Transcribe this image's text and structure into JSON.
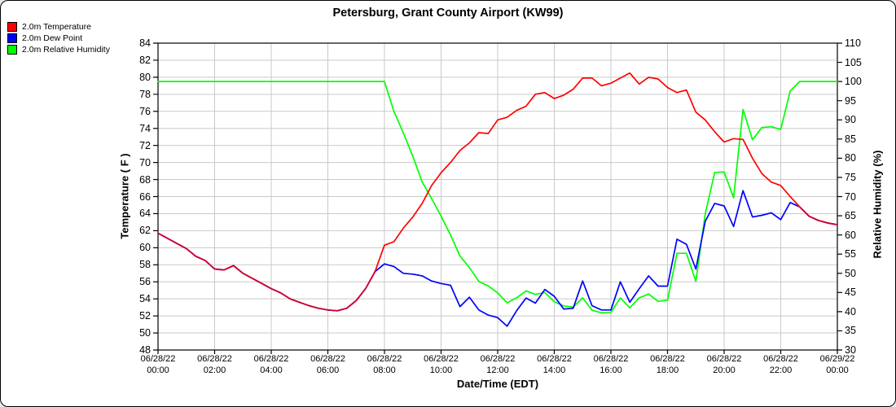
{
  "title": "Petersburg, Grant County Airport (KW99)",
  "legend": {
    "items": [
      {
        "label": "2.0m Temperature",
        "color": "#ff0000"
      },
      {
        "label": "2.0m Dew Point",
        "color": "#0000ff"
      },
      {
        "label": "2.0m Relative Humidity",
        "color": "#00ff00"
      }
    ]
  },
  "chart_data": {
    "type": "line",
    "title": "Petersburg, Grant County Airport (KW99)",
    "grid": true,
    "grid_color": "#c9c9c9",
    "overlap_color": "#cc0033",
    "interval_minutes": 20,
    "left_axis": {
      "label": "Temperature ( F )",
      "min": 48,
      "max": 84,
      "tick_step": 2
    },
    "right_axis": {
      "label": "Relative Humidity (%)",
      "min": 30,
      "max": 110,
      "tick_step": 5
    },
    "x_axis": {
      "label": "Date/Time (EDT)",
      "ticks": [
        {
          "date": "06/28/22",
          "time": "00:00"
        },
        {
          "date": "06/28/22",
          "time": "02:00"
        },
        {
          "date": "06/28/22",
          "time": "04:00"
        },
        {
          "date": "06/28/22",
          "time": "06:00"
        },
        {
          "date": "06/28/22",
          "time": "08:00"
        },
        {
          "date": "06/28/22",
          "time": "10:00"
        },
        {
          "date": "06/28/22",
          "time": "12:00"
        },
        {
          "date": "06/28/22",
          "time": "14:00"
        },
        {
          "date": "06/28/22",
          "time": "16:00"
        },
        {
          "date": "06/28/22",
          "time": "18:00"
        },
        {
          "date": "06/28/22",
          "time": "20:00"
        },
        {
          "date": "06/28/22",
          "time": "22:00"
        },
        {
          "date": "06/29/22",
          "time": "00:00"
        }
      ]
    },
    "series": [
      {
        "name": "2.0m Temperature",
        "axis": "left",
        "color": "#ff0000",
        "values": [
          61.7,
          61.1,
          60.5,
          59.9,
          59.0,
          58.5,
          57.5,
          57.4,
          57.9,
          57.0,
          56.4,
          55.8,
          55.2,
          54.7,
          54.0,
          53.6,
          53.2,
          52.9,
          52.7,
          52.6,
          52.9,
          53.8,
          55.2,
          57.2,
          60.3,
          60.7,
          62.3,
          63.6,
          65.2,
          67.3,
          68.8,
          70.0,
          71.4,
          72.3,
          73.5,
          73.4,
          75.0,
          75.3,
          76.1,
          76.6,
          78.0,
          78.2,
          77.5,
          77.9,
          78.6,
          79.9,
          79.9,
          79.0,
          79.3,
          79.9,
          80.5,
          79.2,
          80.0,
          79.8,
          78.8,
          78.2,
          78.5,
          75.9,
          75.0,
          73.6,
          72.4,
          72.8,
          72.7,
          70.5,
          68.7,
          67.7,
          67.3,
          66.0,
          64.8,
          63.7,
          63.2,
          62.9,
          62.7
        ]
      },
      {
        "name": "2.0m Dew Point",
        "axis": "left",
        "color": "#0000ff",
        "values": [
          61.7,
          61.1,
          60.5,
          59.9,
          59.0,
          58.5,
          57.5,
          57.4,
          57.9,
          57.0,
          56.4,
          55.8,
          55.2,
          54.7,
          54.0,
          53.6,
          53.2,
          52.9,
          52.7,
          52.6,
          52.9,
          53.8,
          55.2,
          57.2,
          58.1,
          57.8,
          57.0,
          56.9,
          56.7,
          56.1,
          55.8,
          55.6,
          53.1,
          54.2,
          52.7,
          52.1,
          51.8,
          50.8,
          52.6,
          54.1,
          53.5,
          55.1,
          54.3,
          52.8,
          52.9,
          56.1,
          53.2,
          52.7,
          52.7,
          56.0,
          53.6,
          55.2,
          56.7,
          55.5,
          55.5,
          61.0,
          60.4,
          57.5,
          63.1,
          65.2,
          64.9,
          62.5,
          66.7,
          63.6,
          63.8,
          64.1,
          63.3,
          65.3,
          64.8,
          63.7,
          63.2,
          62.9,
          62.7
        ]
      },
      {
        "name": "2.0m Relative Humidity",
        "axis": "right",
        "color": "#00ff00",
        "values": [
          100,
          100,
          100,
          100,
          100,
          100,
          100,
          100,
          100,
          100,
          100,
          100,
          100,
          100,
          100,
          100,
          100,
          100,
          100,
          100,
          100,
          100,
          100,
          100,
          100,
          92.2,
          86.6,
          80.5,
          73.8,
          69.5,
          64.9,
          60.0,
          54.5,
          51.5,
          47.9,
          46.7,
          44.9,
          42.3,
          43.6,
          45.4,
          44.5,
          45.0,
          42.6,
          41.5,
          41.2,
          43.6,
          40.4,
          39.7,
          39.8,
          43.6,
          41.0,
          43.6,
          44.6,
          42.7,
          43.0,
          55.2,
          55.2,
          47.9,
          65.5,
          76.3,
          76.4,
          69.7,
          92.7,
          84.8,
          88.0,
          88.2,
          87.5,
          97.5,
          100,
          100,
          100,
          100,
          100
        ]
      }
    ]
  }
}
